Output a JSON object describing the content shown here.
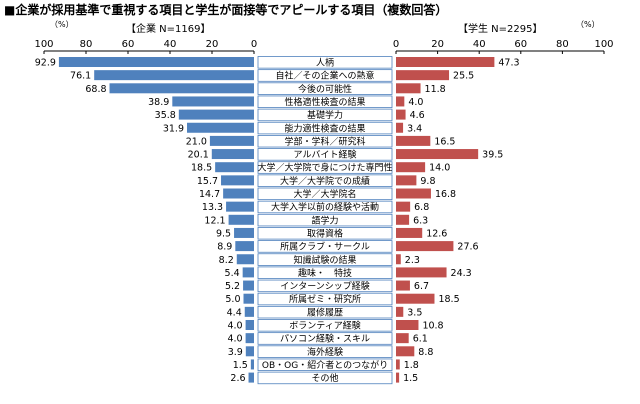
{
  "chart_data": {
    "type": "bar",
    "title": "■企業が採用基準で重視する項目と学生が面接等でアピールする項目（複数回答）",
    "unit": "（%）",
    "xlim": [
      0,
      100
    ],
    "ticks_left": [
      "100",
      "80",
      "60",
      "40",
      "20",
      "0"
    ],
    "ticks_right": [
      "0",
      "20",
      "40",
      "60",
      "80",
      "100"
    ],
    "colors": {
      "company": "#4f81bd",
      "student": "#c0504d"
    },
    "categories": [
      "人柄",
      "自社／その企業への熱意",
      "今後の可能性",
      "性格適性検査の結果",
      "基礎学力",
      "能力適性検査の結果",
      "学部・学科／研究科",
      "アルバイト経験",
      "大学／大学院で身につけた専門性",
      "大学／大学院での成績",
      "大学／大学院名",
      "大学入学以前の経験や活動",
      "語学力",
      "取得資格",
      "所属クラブ・サークル",
      "知識試験の結果",
      "趣味・　特技",
      "インターンシップ経験",
      "所属ゼミ・研究所",
      "履修履歴",
      "ボランティア経験",
      "パソコン経験・スキル",
      "海外経験",
      "OB・OG・紹介者とのつながり",
      "その他"
    ],
    "series": [
      {
        "name": "【企業 N=1169】",
        "values": [
          92.9,
          76.1,
          68.8,
          38.9,
          35.8,
          31.9,
          21.0,
          20.1,
          18.5,
          15.7,
          14.7,
          13.3,
          12.1,
          9.5,
          8.9,
          8.2,
          5.4,
          5.2,
          5.0,
          4.4,
          4.0,
          4.0,
          3.9,
          1.5,
          2.6
        ],
        "labels": [
          "92.9",
          "76.1",
          "68.8",
          "38.9",
          "35.8",
          "31.9",
          "21.0",
          "20.1",
          "18.5",
          "15.7",
          "14.7",
          "13.3",
          "12.1",
          "9.5",
          "8.9",
          "8.2",
          "5.4",
          "5.2",
          "5.0",
          "4.4",
          "4.0",
          "4.0",
          "3.9",
          "1.5",
          "2.6"
        ]
      },
      {
        "name": "【学生 N=2295】",
        "values": [
          47.3,
          25.5,
          11.8,
          4.0,
          4.6,
          3.4,
          16.5,
          39.5,
          14.0,
          9.8,
          16.8,
          6.8,
          6.3,
          12.6,
          27.6,
          2.3,
          24.3,
          6.7,
          18.5,
          3.5,
          10.8,
          6.1,
          8.8,
          1.8,
          1.5
        ],
        "labels": [
          "47.3",
          "25.5",
          "11.8",
          "4.0",
          "4.6",
          "3.4",
          "16.5",
          "39.5",
          "14.0",
          "9.8",
          "16.8",
          "6.8",
          "6.3",
          "12.6",
          "27.6",
          "2.3",
          "24.3",
          "6.7",
          "18.5",
          "3.5",
          "10.8",
          "6.1",
          "8.8",
          "1.8",
          "1.5"
        ]
      }
    ]
  }
}
